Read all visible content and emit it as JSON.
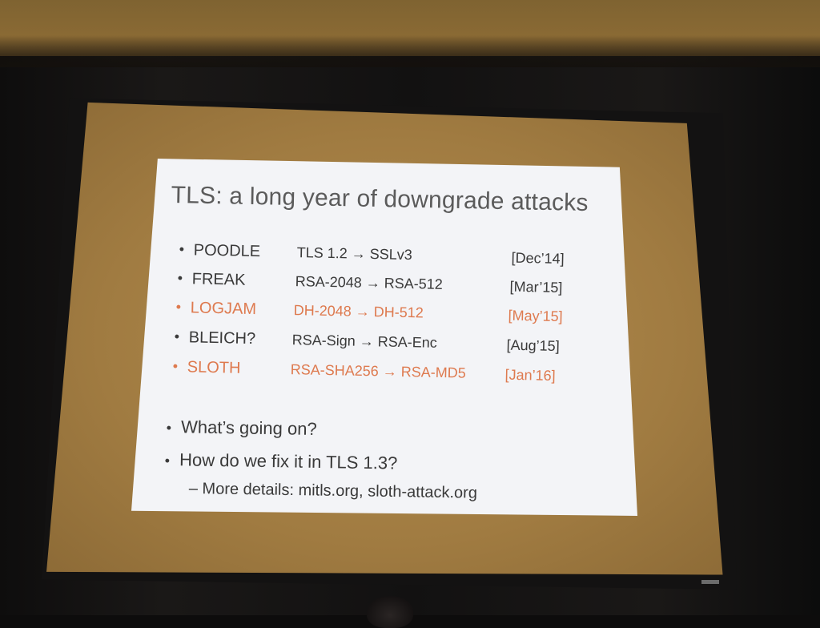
{
  "slide": {
    "title": "TLS: a long year of downgrade attacks",
    "bullet_glyph": "•",
    "accent_color": "#de7a4f",
    "attacks": [
      {
        "name": "POODLE",
        "downgrade": "TLS 1.2 → SSLv3",
        "date": "[Dec’14]",
        "highlight": false
      },
      {
        "name": "FREAK",
        "downgrade": "RSA-2048 → RSA-512",
        "date": "[Mar’15]",
        "highlight": false
      },
      {
        "name": "LOGJAM",
        "downgrade": "DH-2048 → DH-512",
        "date": "[May’15]",
        "highlight": true
      },
      {
        "name": "BLEICH?",
        "downgrade": "RSA-Sign → RSA-Enc",
        "date": "[Aug’15]",
        "highlight": false
      },
      {
        "name": "SLOTH",
        "downgrade": "RSA-SHA256 → RSA-MD5",
        "date": "[Jan’16]",
        "highlight": true
      }
    ],
    "questions": [
      "What’s going on?",
      "How do we fix it in TLS 1.3?"
    ],
    "details": "– More details: mitls.org, sloth-attack.org"
  }
}
